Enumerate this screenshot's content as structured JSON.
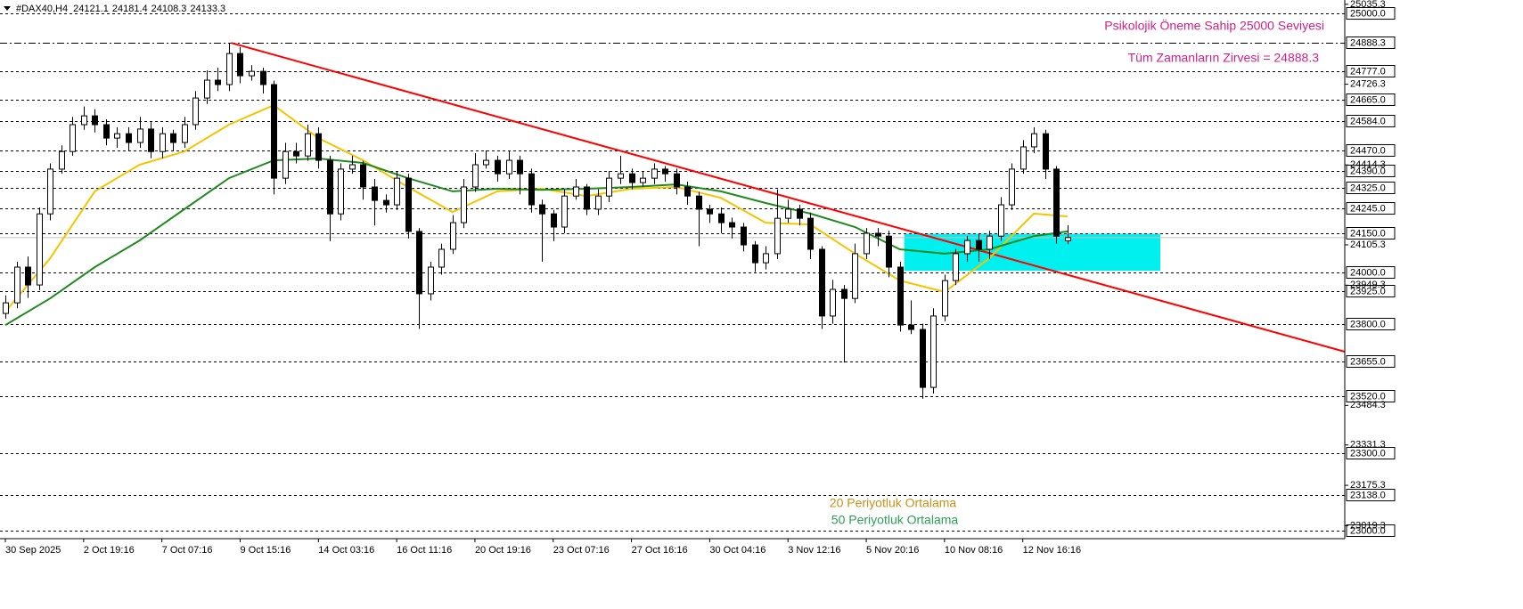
{
  "chart_data": {
    "type": "candlestick",
    "symbol": "#DAX40,H4",
    "xlim": [
      -0.48,
      119.8
    ],
    "ylim": [
      22969,
      25052
    ],
    "categories": [
      "30 Sep 2025",
      null,
      null,
      null,
      null,
      null,
      null,
      "2 Oct 19:16",
      null,
      null,
      null,
      null,
      null,
      null,
      "7 Oct 07:16",
      null,
      null,
      null,
      null,
      null,
      null,
      "9 Oct 15:16",
      null,
      null,
      null,
      null,
      null,
      null,
      "14 Oct 03:16",
      null,
      null,
      null,
      null,
      null,
      null,
      "16 Oct 11:16",
      null,
      null,
      null,
      null,
      null,
      null,
      "20 Oct 19:16",
      null,
      null,
      null,
      null,
      null,
      null,
      "23 Oct 07:16",
      null,
      null,
      null,
      null,
      null,
      null,
      "27 Oct 16:16",
      null,
      null,
      null,
      null,
      null,
      null,
      "30 Oct 04:16",
      null,
      null,
      null,
      null,
      null,
      null,
      "3 Nov 12:16",
      null,
      null,
      null,
      null,
      null,
      null,
      "5 Nov 20:16",
      null,
      null,
      null,
      null,
      null,
      null,
      "10 Nov 08:16",
      null,
      null,
      null,
      null,
      null,
      null,
      "12 Nov 16:16",
      null,
      null,
      null,
      null
    ],
    "candles": [
      [
        23840,
        23910,
        23820,
        23881
      ],
      [
        23881,
        24040,
        23860,
        24019
      ],
      [
        24019,
        24060,
        23900,
        23950
      ],
      [
        23950,
        24250,
        23930,
        24225
      ],
      [
        24225,
        24420,
        24200,
        24398
      ],
      [
        24398,
        24490,
        24380,
        24466
      ],
      [
        24466,
        24600,
        24450,
        24570
      ],
      [
        24570,
        24640,
        24550,
        24604
      ],
      [
        24604,
        24630,
        24540,
        24570
      ],
      [
        24570,
        24590,
        24490,
        24518
      ],
      [
        24518,
        24560,
        24480,
        24535
      ],
      [
        24535,
        24560,
        24470,
        24501
      ],
      [
        24501,
        24600,
        24480,
        24553
      ],
      [
        24553,
        24580,
        24440,
        24466
      ],
      [
        24466,
        24560,
        24440,
        24535
      ],
      [
        24535,
        24550,
        24470,
        24501
      ],
      [
        24501,
        24600,
        24480,
        24570
      ],
      [
        24570,
        24700,
        24550,
        24673
      ],
      [
        24673,
        24780,
        24650,
        24742
      ],
      [
        24742,
        24790,
        24700,
        24725
      ],
      [
        24725,
        24886,
        24700,
        24845
      ],
      [
        24845,
        24870,
        24730,
        24759
      ],
      [
        24759,
        24800,
        24740,
        24776
      ],
      [
        24776,
        24790,
        24690,
        24725
      ],
      [
        24725,
        24740,
        24300,
        24363
      ],
      [
        24363,
        24500,
        24340,
        24466
      ],
      [
        24466,
        24500,
        24420,
        24449
      ],
      [
        24449,
        24570,
        24430,
        24535
      ],
      [
        24535,
        24560,
        24400,
        24432
      ],
      [
        24432,
        24450,
        24120,
        24225
      ],
      [
        24225,
        24420,
        24200,
        24398
      ],
      [
        24398,
        24450,
        24380,
        24415
      ],
      [
        24415,
        24430,
        24280,
        24329
      ],
      [
        24329,
        24360,
        24180,
        24277
      ],
      [
        24277,
        24300,
        24230,
        24260
      ],
      [
        24260,
        24390,
        24240,
        24363
      ],
      [
        24363,
        24380,
        24130,
        24157
      ],
      [
        24157,
        24170,
        23780,
        23916
      ],
      [
        23916,
        24040,
        23890,
        24019
      ],
      [
        24019,
        24110,
        23990,
        24088
      ],
      [
        24088,
        24220,
        24070,
        24191
      ],
      [
        24191,
        24360,
        24170,
        24329
      ],
      [
        24329,
        24460,
        24310,
        24415
      ],
      [
        24415,
        24470,
        24400,
        24432
      ],
      [
        24432,
        24450,
        24350,
        24380
      ],
      [
        24380,
        24470,
        24360,
        24432
      ],
      [
        24432,
        24450,
        24300,
        24380
      ],
      [
        24380,
        24400,
        24230,
        24260
      ],
      [
        24260,
        24280,
        24040,
        24225
      ],
      [
        24225,
        24240,
        24120,
        24174
      ],
      [
        24174,
        24320,
        24150,
        24294
      ],
      [
        24294,
        24360,
        24280,
        24329
      ],
      [
        24329,
        24340,
        24220,
        24243
      ],
      [
        24243,
        24320,
        24220,
        24294
      ],
      [
        24294,
        24390,
        24270,
        24363
      ],
      [
        24363,
        24450,
        24340,
        24380
      ],
      [
        24380,
        24400,
        24320,
        24346
      ],
      [
        24346,
        24390,
        24330,
        24363
      ],
      [
        24363,
        24420,
        24340,
        24398
      ],
      [
        24398,
        24410,
        24350,
        24380
      ],
      [
        24380,
        24400,
        24300,
        24329
      ],
      [
        24329,
        24350,
        24260,
        24294
      ],
      [
        24294,
        24310,
        24100,
        24243
      ],
      [
        24243,
        24260,
        24190,
        24225
      ],
      [
        24225,
        24250,
        24150,
        24191
      ],
      [
        24191,
        24210,
        24130,
        24174
      ],
      [
        24174,
        24190,
        24080,
        24105
      ],
      [
        24105,
        24120,
        24000,
        24036
      ],
      [
        24036,
        24100,
        24010,
        24071
      ],
      [
        24071,
        24320,
        24050,
        24208
      ],
      [
        24208,
        24280,
        24190,
        24243
      ],
      [
        24243,
        24260,
        24180,
        24208
      ],
      [
        24208,
        24230,
        24050,
        24088
      ],
      [
        24088,
        24100,
        23780,
        23830
      ],
      [
        23830,
        23970,
        23800,
        23933
      ],
      [
        23933,
        23950,
        23650,
        23898
      ],
      [
        23898,
        24110,
        23880,
        24071
      ],
      [
        24071,
        24170,
        24050,
        24150
      ],
      [
        24150,
        24170,
        24100,
        24139
      ],
      [
        24139,
        24160,
        23980,
        24019
      ],
      [
        24019,
        24040,
        23770,
        23795
      ],
      [
        23795,
        23890,
        23760,
        23778
      ],
      [
        23778,
        23800,
        23510,
        23554
      ],
      [
        23554,
        23860,
        23530,
        23830
      ],
      [
        23830,
        23990,
        23810,
        23967
      ],
      [
        23967,
        24090,
        23950,
        24071
      ],
      [
        24071,
        24140,
        24040,
        24122
      ],
      [
        24122,
        24150,
        24040,
        24088
      ],
      [
        24088,
        24160,
        24050,
        24139
      ],
      [
        24139,
        24290,
        24120,
        24260
      ],
      [
        24260,
        24420,
        24240,
        24398
      ],
      [
        24398,
        24510,
        24380,
        24484
      ],
      [
        24484,
        24560,
        24460,
        24535
      ],
      [
        24535,
        24550,
        24360,
        24398
      ],
      [
        24398,
        24410,
        24110,
        24139
      ],
      [
        24121.1,
        24181.4,
        24108.3,
        24133.3
      ]
    ],
    "series": [
      {
        "name": "20 Periyotluk Ortalama",
        "color": "#f5c400",
        "x": [
          0,
          4,
          8,
          12,
          16,
          20,
          24,
          28,
          32,
          36,
          40,
          44,
          48,
          52,
          56,
          60,
          64,
          68,
          72,
          76,
          80,
          84,
          88,
          92,
          95
        ],
        "values": [
          23847,
          24053,
          24312,
          24415,
          24466,
          24570,
          24645,
          24518,
          24432,
          24329,
          24232,
          24312,
          24322,
          24294,
          24322,
          24329,
          24287,
          24191,
          24184,
          24071,
          23967,
          23923,
          24053,
          24226,
          24215
        ]
      },
      {
        "name": "50 Periyotluk Ortalama",
        "color": "#1f8a1f",
        "x": [
          0,
          4,
          8,
          12,
          16,
          20,
          24,
          28,
          32,
          36,
          40,
          44,
          48,
          52,
          56,
          60,
          64,
          68,
          72,
          76,
          80,
          84,
          88,
          92,
          95
        ],
        "values": [
          23795,
          23898,
          24019,
          24122,
          24243,
          24363,
          24432,
          24439,
          24422,
          24363,
          24312,
          24322,
          24318,
          24322,
          24329,
          24339,
          24312,
          24267,
          24226,
          24174,
          24088,
          24071,
          24088,
          24139,
          24157
        ]
      }
    ],
    "trendline": {
      "color": "#ff0000",
      "x": [
        20.2,
        119.8
      ],
      "values": [
        24886,
        23692
      ]
    },
    "zone": {
      "color": "#00f0f0",
      "x": [
        80.4,
        103.3
      ],
      "values": [
        24005,
        24148
      ]
    },
    "levels": [
      {
        "value": 25000,
        "label": "25000.0"
      },
      {
        "value": 24888.3,
        "label": "24888.3"
      },
      {
        "value": 24777,
        "label": "24777.0"
      },
      {
        "value": 24665,
        "label": "24665.0"
      },
      {
        "value": 24584,
        "label": "24584.0"
      },
      {
        "value": 24470,
        "label": "24470.0"
      },
      {
        "value": 24390,
        "label": "24390.0"
      },
      {
        "value": 24325,
        "label": "24325.0"
      },
      {
        "value": 24245,
        "label": "24245.0"
      },
      {
        "value": 24150,
        "label": "24150.0"
      },
      {
        "value": 24000,
        "label": "24000.0"
      },
      {
        "value": 23925,
        "label": "23925.0"
      },
      {
        "value": 23800,
        "label": "23800.0"
      },
      {
        "value": 23655,
        "label": "23655.0"
      },
      {
        "value": 23520,
        "label": "23520.0"
      },
      {
        "value": 23300,
        "label": "23300.0"
      },
      {
        "value": 23138,
        "label": "23138.0"
      },
      {
        "value": 23000,
        "label": "23000.0"
      }
    ],
    "yticks": [
      25035.3,
      24726.3,
      24414.3,
      24105.3,
      23949.3,
      23484.3,
      23331.3,
      23175.3,
      23019.3
    ],
    "annotations": [
      "Psikolojik Öneme Sahip 25000 Seviyesi",
      "Tüm Zamanların Zirvesi = 24888.3"
    ]
  }
}
